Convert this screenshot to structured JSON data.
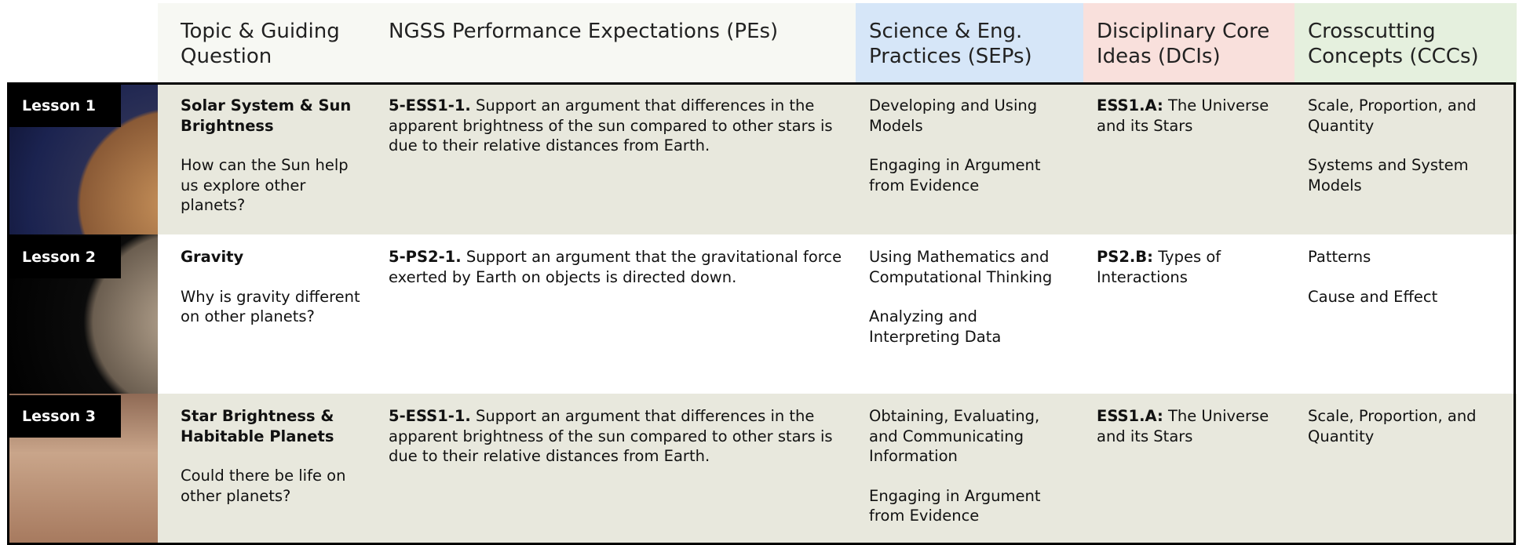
{
  "header": {
    "columns": [
      "Topic & Guiding Question",
      "NGSS Performance Expectations (PEs)",
      "Science & Eng. Practices (SEPs)",
      "Disciplinary Core Ideas (DCIs)",
      "Crosscutting Concepts (CCCs)"
    ]
  },
  "lessons": [
    {
      "label": "Lesson 1",
      "topic": "Solar System & Sun Brightness",
      "question": "How can the Sun help us explore other planets?",
      "pe_code": "5-ESS1-1.",
      "pe_text": "Support an argument that differences in the apparent brightness of the sun compared to other stars is due to their relative distances from Earth.",
      "seps": [
        "Developing and Using Models",
        "Engaging in Argument from Evidence"
      ],
      "dci_code": "ESS1.A:",
      "dci_text": "The Universe and its Stars",
      "cccs": [
        "Scale, Proportion, and Quantity",
        "Systems and System Models"
      ]
    },
    {
      "label": "Lesson 2",
      "topic": "Gravity",
      "question": "Why is gravity different on other planets?",
      "pe_code": "5-PS2-1.",
      "pe_text": "Support an argument that the gravitational force exerted by Earth on objects is directed down.",
      "seps": [
        "Using Mathematics and Computational Thinking",
        "Analyzing and Interpreting Data"
      ],
      "dci_code": "PS2.B:",
      "dci_text": "Types of Interactions",
      "cccs": [
        "Patterns",
        "Cause and Effect"
      ]
    },
    {
      "label": "Lesson 3",
      "topic": "Star Brightness & Habitable Planets",
      "question": "Could there be life on other planets?",
      "pe_code": "5-ESS1-1.",
      "pe_text": "Support an argument that differences in the apparent brightness of the sun compared to other stars is due to their relative distances from Earth.",
      "seps": [
        "Obtaining, Evaluating, and Communicating Information",
        "Engaging in Argument from Evidence"
      ],
      "dci_code": "ESS1.A:",
      "dci_text": "The Universe and its Stars",
      "cccs": [
        "Scale, Proportion, and Quantity"
      ]
    }
  ]
}
